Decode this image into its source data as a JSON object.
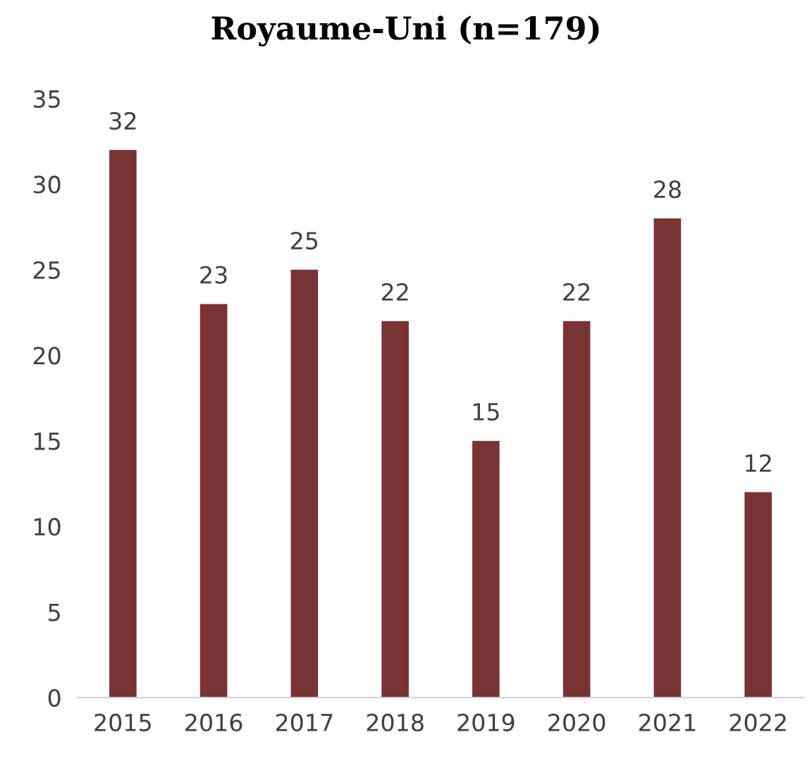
{
  "chart_data": {
    "type": "bar",
    "title": "Royaume-Uni (n=179)",
    "categories": [
      "2015",
      "2016",
      "2017",
      "2018",
      "2019",
      "2020",
      "2021",
      "2022"
    ],
    "values": [
      32,
      23,
      25,
      22,
      15,
      22,
      28,
      12
    ],
    "color": "#7a3335",
    "ylim": [
      0,
      35
    ],
    "yticks": [
      0,
      5,
      10,
      15,
      20,
      25,
      30,
      35
    ],
    "data_labels": true,
    "grid": false,
    "legend": false
  }
}
